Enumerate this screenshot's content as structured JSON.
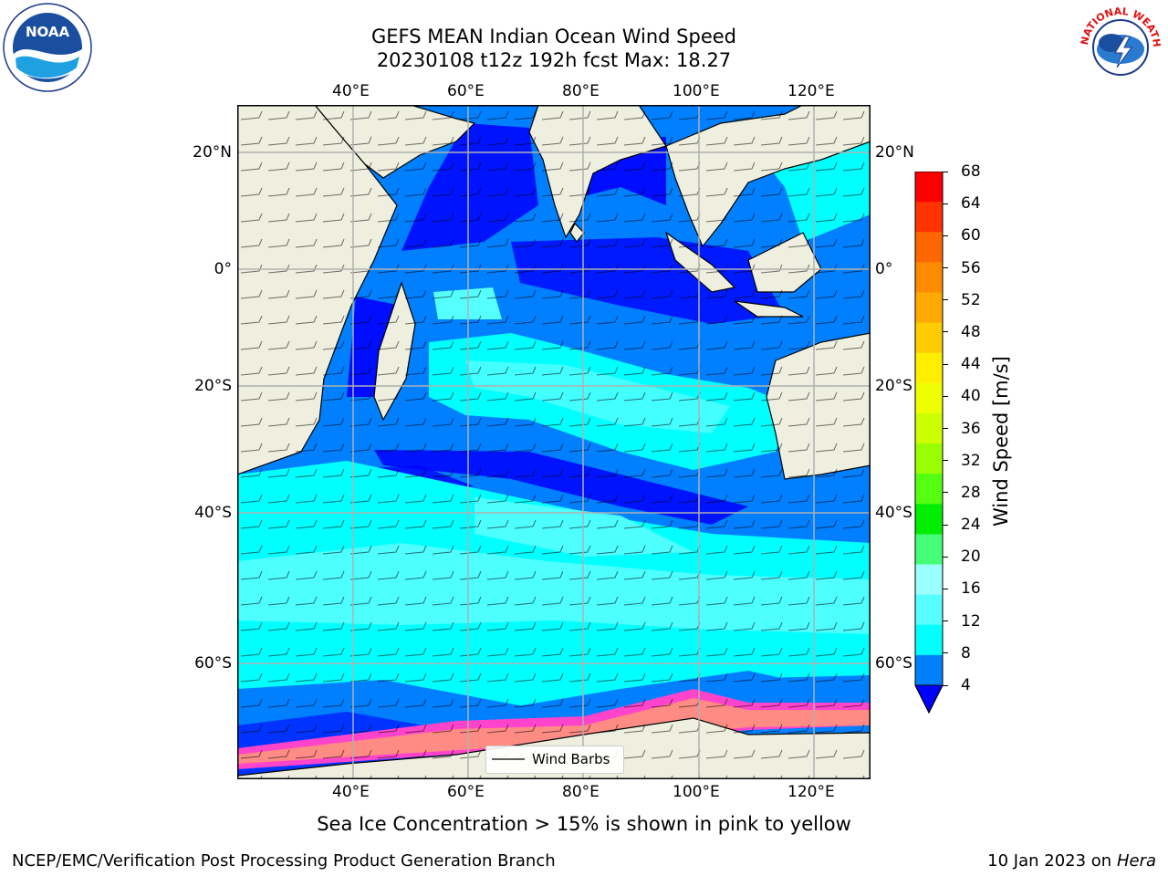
{
  "title_line1": "GEFS MEAN Indian Ocean Wind Speed",
  "title_line2": "20230108 t12z 192h fcst   Max: 18.27",
  "lon_ticks": [
    "40°E",
    "60°E",
    "80°E",
    "100°E",
    "120°E"
  ],
  "lat_ticks_left": [
    "20°N",
    "0°",
    "20°S",
    "40°S",
    "60°S"
  ],
  "lat_ticks_right": [
    "20°N",
    "0°",
    "20°S",
    "40°S",
    "60°S"
  ],
  "colorbar": {
    "label": "Wind Speed [m/s]",
    "ticks": [
      "68",
      "64",
      "60",
      "56",
      "52",
      "48",
      "44",
      "40",
      "36",
      "32",
      "28",
      "24",
      "20",
      "16",
      "12",
      "8",
      "4"
    ],
    "colors": [
      "#ff0000",
      "#ff3300",
      "#ff6600",
      "#ff8c00",
      "#ffaa00",
      "#ffcc00",
      "#ffee00",
      "#eeff00",
      "#ccff00",
      "#99ff00",
      "#55ff11",
      "#00ee00",
      "#44ff77",
      "#99ffff",
      "#55ffff",
      "#00ffff",
      "#0080ff"
    ],
    "extend_color": "#0000ff"
  },
  "legend_label": "Wind Barbs",
  "note": "Sea Ice Concentration > 15% is shown in pink to yellow",
  "footer_left": "NCEP/EMC/Verification Post Processing Product Generation Branch",
  "footer_date": "10 Jan 2023 on ",
  "footer_host": "Hera",
  "noaa_logo_text": "NOAA",
  "nws_logo_text": "NATIONAL WEATHER SERVICE",
  "colors": {
    "land": "#efefdf",
    "ocean_low": "#0080ff",
    "ocean_calm": "#0000ff",
    "ocean_mid": "#00ffff",
    "ocean_high": "#55ffff",
    "ice": "#ff44cc",
    "grid": "#b0b0b0"
  }
}
